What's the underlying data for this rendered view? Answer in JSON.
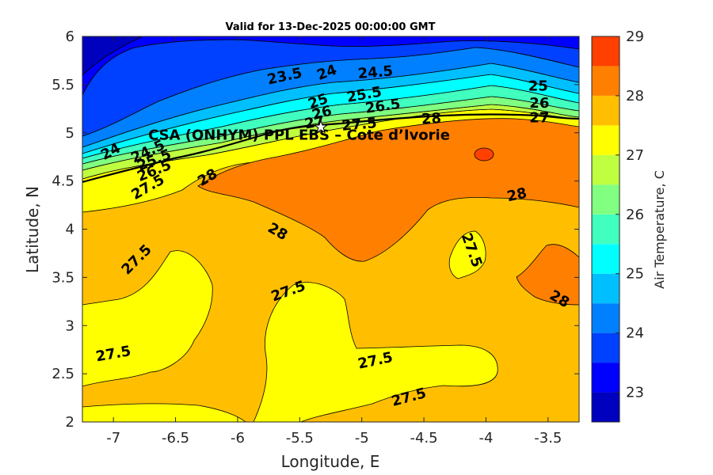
{
  "title": "Valid for 13-Dec-2025 00:00:00 GMT",
  "site_label": "CSA (ONHYM) PPL EBS  – Cote d’Ivorie",
  "colorbar_label": "Air Temperature, C",
  "chart_data": {
    "type": "heatmap",
    "title": "Valid for 13-Dec-2025 00:00:00 GMT",
    "xlabel": "Longitude, E",
    "ylabel": "Latitude, N",
    "xlim": [
      -7.25,
      -3.25
    ],
    "ylim": [
      2,
      6
    ],
    "xticks": [
      "-7",
      "-6.5",
      "-6",
      "-5.5",
      "-5",
      "-4.5",
      "-4",
      "-3.5"
    ],
    "xtick_values": [
      -7,
      -6.5,
      -6,
      -5.5,
      -5,
      -4.5,
      -4,
      -3.5
    ],
    "yticks": [
      "2",
      "2.5",
      "3",
      "3.5",
      "4",
      "4.5",
      "5",
      "5.5",
      "6"
    ],
    "ytick_values": [
      2,
      2.5,
      3,
      3.5,
      4,
      4.5,
      5,
      5.5,
      6
    ],
    "colorbar": {
      "label": "Air Temperature, C",
      "range": [
        22.5,
        29
      ],
      "ticks": [
        "23",
        "24",
        "25",
        "26",
        "27",
        "28",
        "29"
      ],
      "tick_values": [
        23,
        24,
        25,
        26,
        27,
        28,
        29
      ],
      "levels": [
        {
          "from": 22.5,
          "to": 23.0,
          "color": "#0000bf"
        },
        {
          "from": 23.0,
          "to": 23.5,
          "color": "#0000ff"
        },
        {
          "from": 23.5,
          "to": 24.0,
          "color": "#0040ff"
        },
        {
          "from": 24.0,
          "to": 24.5,
          "color": "#0080ff"
        },
        {
          "from": 24.5,
          "to": 25.0,
          "color": "#00bfff"
        },
        {
          "from": 25.0,
          "to": 25.5,
          "color": "#00ffff"
        },
        {
          "from": 25.5,
          "to": 26.0,
          "color": "#40ffbf"
        },
        {
          "from": 26.0,
          "to": 26.5,
          "color": "#80ff80"
        },
        {
          "from": 26.5,
          "to": 27.0,
          "color": "#bfff40"
        },
        {
          "from": 27.0,
          "to": 27.5,
          "color": "#ffff00"
        },
        {
          "from": 27.5,
          "to": 28.0,
          "color": "#ffbf00"
        },
        {
          "from": 28.0,
          "to": 28.5,
          "color": "#ff8000"
        },
        {
          "from": 28.5,
          "to": 29.0,
          "color": "#ff4000"
        }
      ]
    },
    "site": {
      "lon": -5.33,
      "lat": 5.06,
      "label": "CSA (ONHYM) PPL EBS  – Cote d’Ivorie"
    },
    "contour_labels": [
      {
        "text": "23.5",
        "lon": -5.62,
        "lat": 5.58,
        "angle": -12
      },
      {
        "text": "24",
        "lon": -5.28,
        "lat": 5.62,
        "angle": -20
      },
      {
        "text": "24.5",
        "lon": -4.89,
        "lat": 5.62,
        "angle": -5
      },
      {
        "text": "25",
        "lon": -5.35,
        "lat": 5.32,
        "angle": -20
      },
      {
        "text": "25.5",
        "lon": -4.98,
        "lat": 5.39,
        "angle": -10
      },
      {
        "text": "26",
        "lon": -5.32,
        "lat": 5.2,
        "angle": -15
      },
      {
        "text": "26.5",
        "lon": -4.83,
        "lat": 5.27,
        "angle": -8
      },
      {
        "text": "27",
        "lon": -5.38,
        "lat": 5.1,
        "angle": -10
      },
      {
        "text": "27.5",
        "lon": -5.02,
        "lat": 5.08,
        "angle": -5
      },
      {
        "text": "28",
        "lon": -4.44,
        "lat": 5.14,
        "angle": -3
      },
      {
        "text": "25",
        "lon": -3.58,
        "lat": 5.48,
        "angle": 0
      },
      {
        "text": "26",
        "lon": -3.57,
        "lat": 5.3,
        "angle": 0
      },
      {
        "text": "27",
        "lon": -3.57,
        "lat": 5.15,
        "angle": 0
      },
      {
        "text": "24",
        "lon": -7.02,
        "lat": 4.8,
        "angle": -28
      },
      {
        "text": "24.5",
        "lon": -6.72,
        "lat": 4.8,
        "angle": -25
      },
      {
        "text": "25.5",
        "lon": -6.67,
        "lat": 4.71,
        "angle": -22
      },
      {
        "text": "26.5",
        "lon": -6.67,
        "lat": 4.6,
        "angle": -22
      },
      {
        "text": "27.5",
        "lon": -6.72,
        "lat": 4.43,
        "angle": -30
      },
      {
        "text": "28",
        "lon": -6.24,
        "lat": 4.53,
        "angle": -30
      },
      {
        "text": "28",
        "lon": -3.75,
        "lat": 4.35,
        "angle": -12
      },
      {
        "text": "28",
        "lon": -5.68,
        "lat": 3.97,
        "angle": 30
      },
      {
        "text": "27.5",
        "lon": -6.81,
        "lat": 3.68,
        "angle": -45
      },
      {
        "text": "27.5",
        "lon": -5.59,
        "lat": 3.35,
        "angle": -20
      },
      {
        "text": "27.5",
        "lon": -4.12,
        "lat": 3.78,
        "angle": 70
      },
      {
        "text": "28",
        "lon": -3.41,
        "lat": 3.27,
        "angle": 30
      },
      {
        "text": "27.5",
        "lon": -7.0,
        "lat": 2.7,
        "angle": -10
      },
      {
        "text": "27.5",
        "lon": -4.89,
        "lat": 2.63,
        "angle": -12
      },
      {
        "text": "27.5",
        "lon": -4.62,
        "lat": 2.25,
        "angle": -15
      }
    ]
  }
}
